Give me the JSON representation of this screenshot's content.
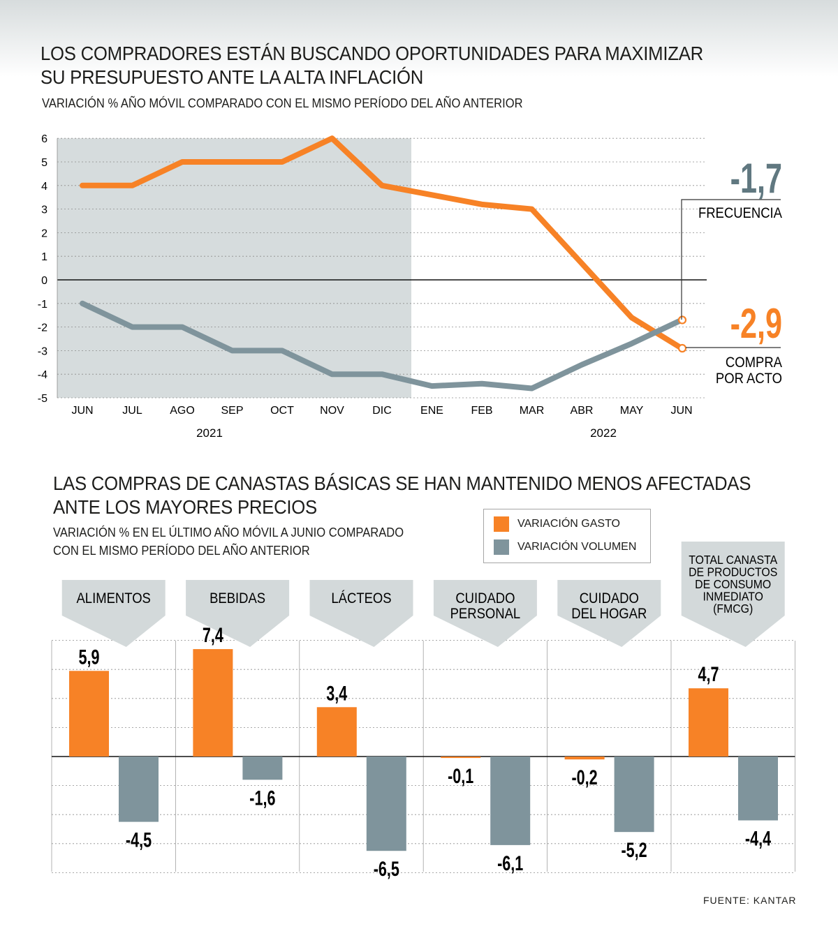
{
  "colors": {
    "orange": "#f78226",
    "gray": "#7f949c",
    "gray_dark": "#607880",
    "shade": "#d6dcdd",
    "banner": "#d3d9da"
  },
  "line_section": {
    "title_line1": "LOS COMPRADORES ESTÁN BUSCANDO OPORTUNIDADES PARA MAXIMIZAR",
    "title_line2": "SU PRESUPUESTO ANTE LA ALTA INFLACIÓN",
    "subtitle": "VARIACIÓN % AÑO MÓVIL COMPARADO CON EL MISMO PERÍODO DEL AÑO ANTERIOR",
    "year1": "2021",
    "year2": "2022",
    "callout_frecuencia_value": "-1,7",
    "callout_frecuencia_label": "FRECUENCIA",
    "callout_compra_value": "-2,9",
    "callout_compra_label_line1": "COMPRA",
    "callout_compra_label_line2": "POR ACTO"
  },
  "bar_section": {
    "title_line1": "LAS COMPRAS DE CANASTAS BÁSICAS SE HAN MANTENIDO MENOS AFECTADAS",
    "title_line2": "ANTE LOS MAYORES PRECIOS",
    "subtitle_line1": "VARIACIÓN % EN EL ÚLTIMO AÑO MÓVIL A JUNIO COMPARADO",
    "subtitle_line2": "CON EL MISMO PERÍODO DEL AÑO ANTERIOR",
    "legend_gasto": "VARIACIÓN GASTO",
    "legend_volumen": "VARIACIÓN VOLUMEN"
  },
  "source": "FUENTE: KANTAR",
  "chart_data": [
    {
      "type": "line",
      "x": [
        "JUN",
        "JUL",
        "AGO",
        "SEP",
        "OCT",
        "NOV",
        "DIC",
        "ENE",
        "FEB",
        "MAR",
        "ABR",
        "MAY",
        "JUN"
      ],
      "ylim": [
        -5,
        6
      ],
      "yticks": [
        6,
        5,
        4,
        3,
        2,
        1,
        0,
        -1,
        -2,
        -3,
        -4,
        -5
      ],
      "shaded_range": "JUN 2021 - DIC 2021",
      "series": [
        {
          "name": "COMPRA POR ACTO",
          "color": "orange",
          "values": [
            4,
            4,
            5,
            5,
            5,
            6,
            4,
            3.6,
            3.2,
            3,
            0.7,
            -1.6,
            -2.9
          ]
        },
        {
          "name": "FRECUENCIA",
          "color": "gray",
          "values": [
            -1,
            -2,
            -2,
            -3,
            -3,
            -4,
            -4,
            -4.5,
            -4.4,
            -4.6,
            -3.6,
            -2.7,
            -1.7
          ]
        }
      ]
    },
    {
      "type": "bar",
      "categories": [
        [
          "ALIMENTOS"
        ],
        [
          "BEBIDAS"
        ],
        [
          "LÁCTEOS"
        ],
        [
          "CUIDADO",
          "PERSONAL"
        ],
        [
          "CUIDADO",
          "DEL HOGAR"
        ],
        [
          "TOTAL CANASTA",
          "DE PRODUCTOS",
          "DE CONSUMO",
          "INMEDIATO",
          "(FMCG)"
        ]
      ],
      "series": [
        {
          "name": "VARIACIÓN GASTO",
          "color": "orange",
          "values": [
            5.9,
            7.4,
            3.4,
            -0.1,
            -0.2,
            4.7
          ],
          "labels": [
            "5,9",
            "7,4",
            "3,4",
            "-0,1",
            "-0,2",
            "4,7"
          ]
        },
        {
          "name": "VARIACIÓN VOLUMEN",
          "color": "gray",
          "values": [
            -4.5,
            -1.6,
            -6.5,
            -6.1,
            -5.2,
            -4.4
          ],
          "labels": [
            "-4,5",
            "-1,6",
            "-6,5",
            "-6,1",
            "-5,2",
            "-4,4"
          ]
        }
      ]
    }
  ]
}
